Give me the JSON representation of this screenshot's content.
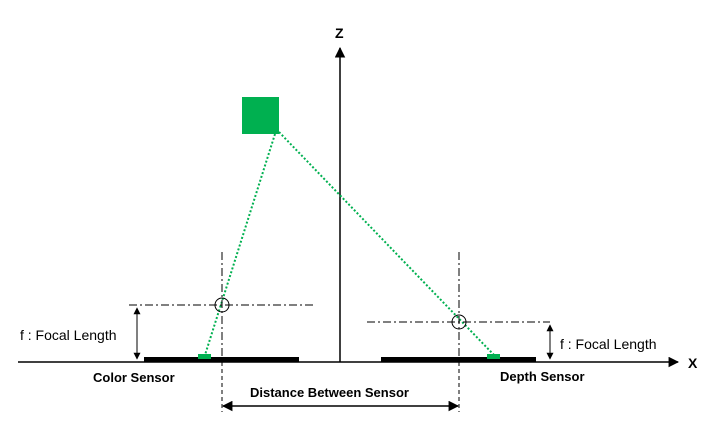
{
  "axes": {
    "z_label": "Z",
    "x_label": "X"
  },
  "labels": {
    "color_sensor": "Color Sensor",
    "depth_sensor": "Depth Sensor",
    "distance_between": "Distance Between Sensor",
    "focal_left": "f : Focal Length",
    "focal_right": "f : Focal Length"
  },
  "colors": {
    "object": "#00b050",
    "ray": "#00b050",
    "line": "#000000"
  }
}
